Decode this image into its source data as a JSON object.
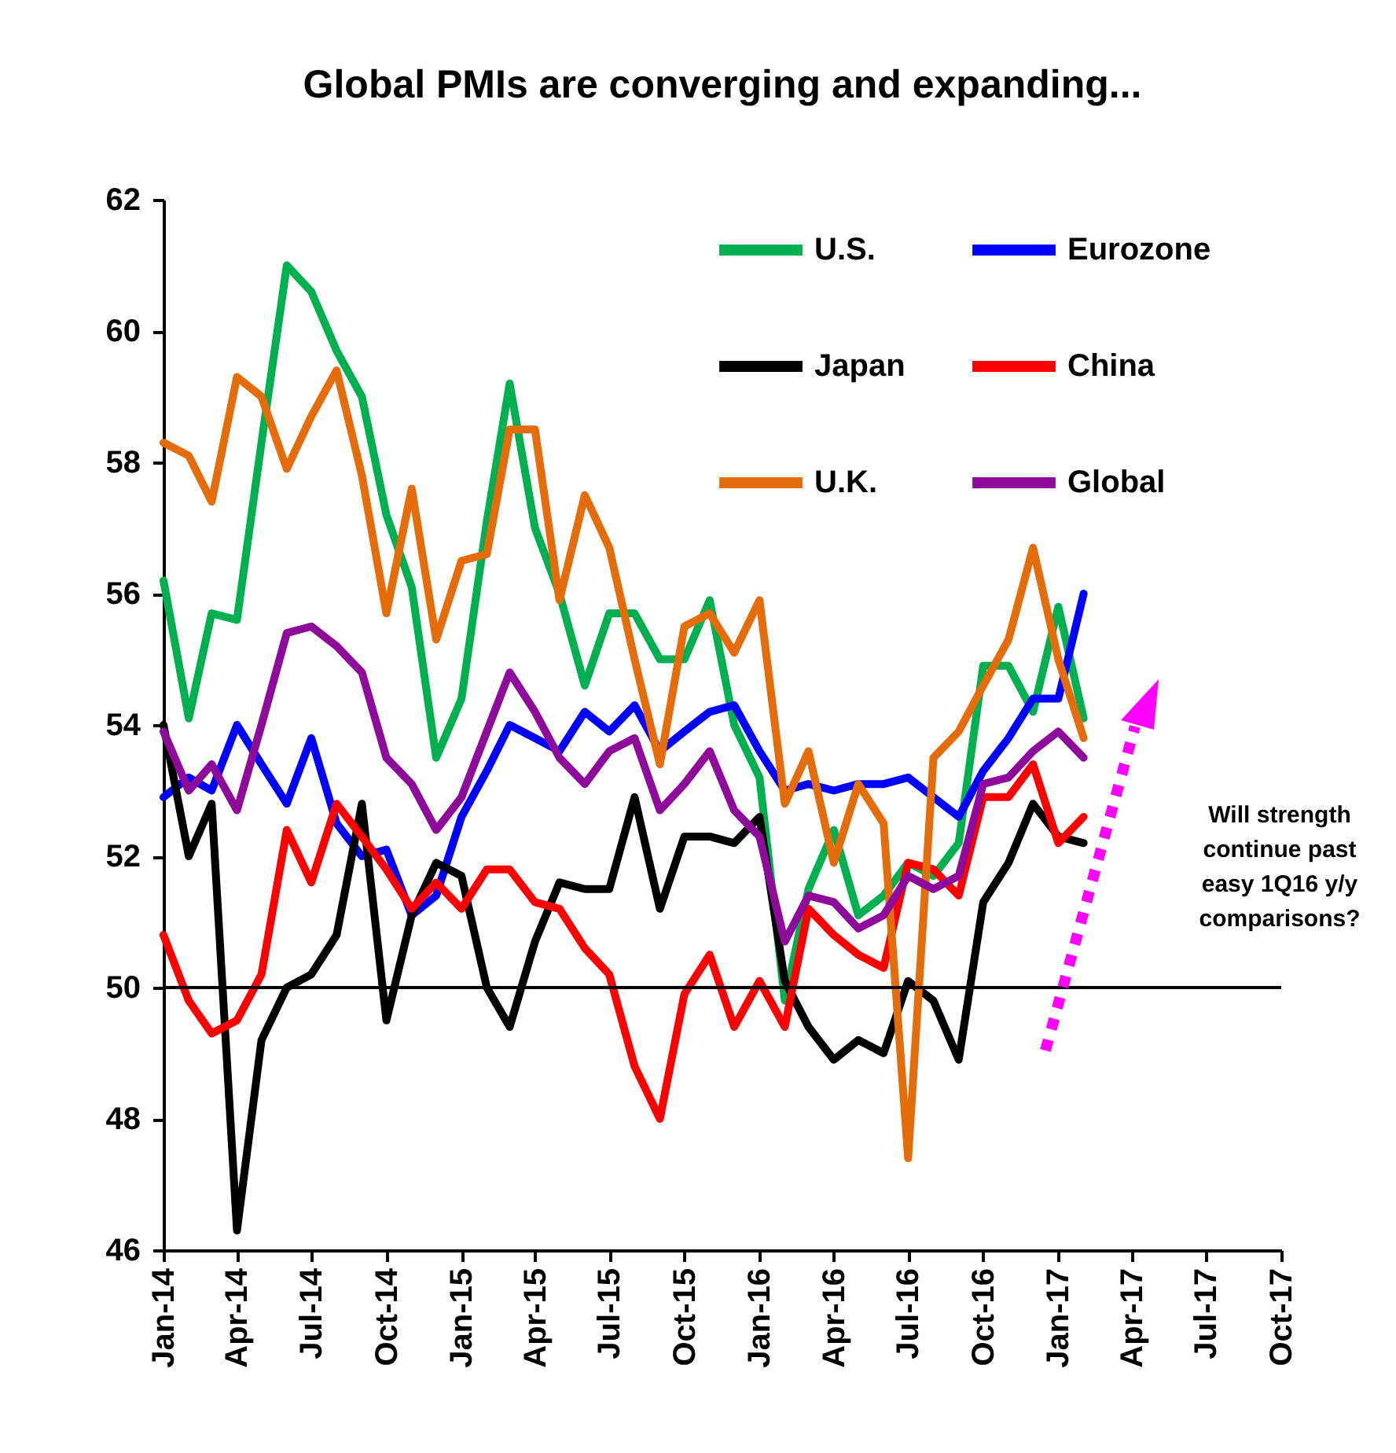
{
  "chart_data": {
    "type": "line",
    "title": "Global PMIs are converging and expanding...",
    "x": [
      "2014-01",
      "2014-02",
      "2014-03",
      "2014-04",
      "2014-05",
      "2014-06",
      "2014-07",
      "2014-08",
      "2014-09",
      "2014-10",
      "2014-11",
      "2014-12",
      "2015-01",
      "2015-02",
      "2015-03",
      "2015-04",
      "2015-05",
      "2015-06",
      "2015-07",
      "2015-08",
      "2015-09",
      "2015-10",
      "2015-11",
      "2015-12",
      "2016-01",
      "2016-02",
      "2016-03",
      "2016-04",
      "2016-05",
      "2016-06",
      "2016-07",
      "2016-08",
      "2016-09",
      "2016-10",
      "2016-11",
      "2016-12",
      "2017-01",
      "2017-02"
    ],
    "series": [
      {
        "name": "U.S.",
        "color": "#00b050",
        "values": [
          56.2,
          54.1,
          55.7,
          55.6,
          58.3,
          61.0,
          60.6,
          59.7,
          59.0,
          57.2,
          56.1,
          53.5,
          54.4,
          57.1,
          59.2,
          57.0,
          56.0,
          54.6,
          55.7,
          55.7,
          55.0,
          55.0,
          55.9,
          54.0,
          53.2,
          49.8,
          51.5,
          52.4,
          51.1,
          51.4,
          51.9,
          51.7,
          52.2,
          54.9,
          54.9,
          54.2,
          55.8,
          54.1
        ]
      },
      {
        "name": "Eurozone",
        "color": "#0000ff",
        "values": [
          52.9,
          53.2,
          53.0,
          54.0,
          53.4,
          52.8,
          53.8,
          52.5,
          52.0,
          52.1,
          51.1,
          51.4,
          52.6,
          53.3,
          54.0,
          53.8,
          53.6,
          54.2,
          53.9,
          54.3,
          53.6,
          53.9,
          54.2,
          54.3,
          53.6,
          53.0,
          53.1,
          53.0,
          53.1,
          53.1,
          53.2,
          52.9,
          52.6,
          53.3,
          53.8,
          54.4,
          54.4,
          56.0
        ]
      },
      {
        "name": "Japan",
        "color": "#000000",
        "values": [
          54.0,
          52.0,
          52.8,
          46.3,
          49.2,
          50.0,
          50.2,
          50.8,
          52.8,
          49.5,
          51.1,
          51.9,
          51.7,
          50.0,
          49.4,
          50.7,
          51.6,
          51.5,
          51.5,
          52.9,
          51.2,
          52.3,
          52.3,
          52.2,
          52.6,
          50.1,
          49.4,
          48.9,
          49.2,
          49.0,
          50.1,
          49.8,
          48.9,
          51.3,
          51.9,
          52.8,
          52.3,
          52.2
        ]
      },
      {
        "name": "China",
        "color": "#ff0000",
        "values": [
          50.8,
          49.8,
          49.3,
          49.5,
          50.2,
          52.4,
          51.6,
          52.8,
          52.3,
          51.8,
          51.2,
          51.6,
          51.2,
          51.8,
          51.8,
          51.3,
          51.2,
          50.6,
          50.2,
          48.8,
          48.0,
          49.9,
          50.5,
          49.4,
          50.1,
          49.4,
          51.2,
          50.8,
          50.5,
          50.3,
          51.9,
          51.8,
          51.4,
          52.9,
          52.9,
          53.4,
          52.2,
          52.6
        ]
      },
      {
        "name": "U.K.",
        "color": "#e46c0a",
        "values": [
          58.3,
          58.1,
          57.4,
          59.3,
          59.0,
          57.9,
          58.7,
          59.4,
          57.8,
          55.7,
          57.6,
          55.3,
          56.5,
          56.6,
          58.5,
          58.5,
          55.9,
          57.5,
          56.7,
          55.0,
          53.4,
          55.5,
          55.7,
          55.1,
          55.9,
          52.8,
          53.6,
          51.9,
          53.1,
          52.5,
          47.4,
          53.5,
          53.9,
          54.6,
          55.3,
          56.7,
          55.0,
          53.8
        ]
      },
      {
        "name": "Global",
        "color": "#8e0a9a",
        "values": [
          53.9,
          53.0,
          53.4,
          52.7,
          54.0,
          55.4,
          55.5,
          55.2,
          54.8,
          53.5,
          53.1,
          52.4,
          52.9,
          53.9,
          54.8,
          54.2,
          53.5,
          53.1,
          53.6,
          53.8,
          52.7,
          53.1,
          53.6,
          52.7,
          52.3,
          50.7,
          51.4,
          51.3,
          50.9,
          51.1,
          51.7,
          51.5,
          51.7,
          53.1,
          53.2,
          53.6,
          53.9,
          53.5
        ]
      }
    ],
    "xlim": [
      "2014-01",
      "2017-10"
    ],
    "xticks": [
      {
        "value": "2014-01",
        "label": "Jan-14"
      },
      {
        "value": "2014-04",
        "label": "Apr-14"
      },
      {
        "value": "2014-07",
        "label": "Jul-14"
      },
      {
        "value": "2014-10",
        "label": "Oct-14"
      },
      {
        "value": "2015-01",
        "label": "Jan-15"
      },
      {
        "value": "2015-04",
        "label": "Apr-15"
      },
      {
        "value": "2015-07",
        "label": "Jul-15"
      },
      {
        "value": "2015-10",
        "label": "Oct-15"
      },
      {
        "value": "2016-01",
        "label": "Jan-16"
      },
      {
        "value": "2016-04",
        "label": "Apr-16"
      },
      {
        "value": "2016-07",
        "label": "Jul-16"
      },
      {
        "value": "2016-10",
        "label": "Oct-16"
      },
      {
        "value": "2017-01",
        "label": "Jan-17"
      },
      {
        "value": "2017-04",
        "label": "Apr-17"
      },
      {
        "value": "2017-07",
        "label": "Jul-17"
      },
      {
        "value": "2017-10",
        "label": "Oct-17"
      }
    ],
    "ylim": [
      46,
      62
    ],
    "yticks": [
      46,
      48,
      50,
      52,
      54,
      56,
      58,
      60,
      62
    ],
    "ref_lines": [
      {
        "axis": "y",
        "value": 50,
        "color": "#000000"
      }
    ],
    "annotations": [
      "Will strength continue past easy 1Q16 y/y comparisons?"
    ],
    "legend": "top right",
    "grid": false
  }
}
